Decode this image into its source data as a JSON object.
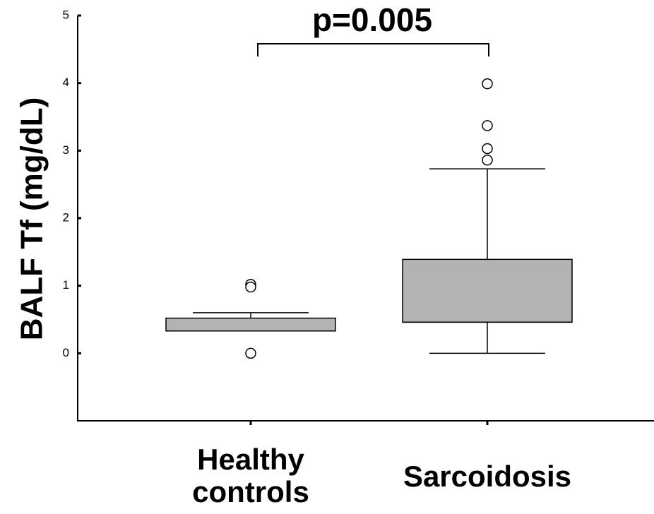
{
  "chart_data": {
    "type": "box",
    "y_label": "BALF Tf (mg/dL)",
    "annotation": "p=0.005",
    "categories": [
      "Healthy controls",
      "Sarcoidosis"
    ],
    "color": "#b3b3b3",
    "ylim": [
      -1,
      5
    ],
    "yticks": [
      0,
      1,
      2,
      3,
      4,
      5
    ],
    "boxes": [
      {
        "whisker_low": 0.33,
        "q1": 0.33,
        "median": 0.33,
        "q3": 0.52,
        "whisker_high": 0.6,
        "outliers": [
          1.02,
          0.98,
          0.0
        ]
      },
      {
        "whisker_low": 0.0,
        "q1": 0.46,
        "median": 0.46,
        "q3": 1.39,
        "whisker_high": 2.73,
        "outliers": [
          3.99,
          3.37,
          3.03,
          2.86
        ]
      }
    ]
  }
}
